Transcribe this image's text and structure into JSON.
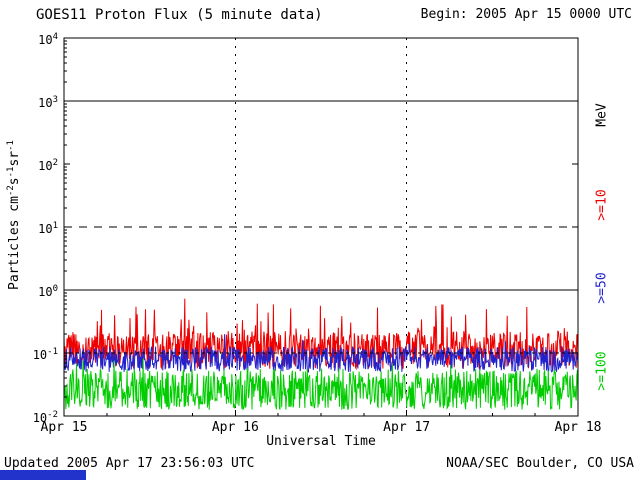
{
  "header": {
    "title": "GOES11 Proton Flux (5 minute data)",
    "begin_label": "Begin: 2005 Apr 15 0000 UTC"
  },
  "footer": {
    "updated": "Updated 2005 Apr 17 23:56:03 UTC",
    "credit": "NOAA/SEC Boulder, CO USA",
    "bar_color": "#2233cc"
  },
  "chart_data": {
    "type": "line",
    "title": "GOES11 Proton Flux (5 minute data)",
    "xlabel": "Universal Time",
    "ylabel": "Particles cm-2 s-1 sr-1",
    "ylabel_parts": {
      "t1": "Particles  cm",
      "s1": "-2",
      "t2": "s",
      "s2": "-1",
      "t3": "sr",
      "s3": "-1"
    },
    "x_ticks": [
      "Apr 15",
      "Apr 16",
      "Apr 17",
      "Apr 18"
    ],
    "x_days": 3,
    "points_per_day": 288,
    "y_tick_exps": [
      4,
      3,
      2,
      1,
      0,
      -1,
      -2
    ],
    "ylim_exp": [
      -2,
      4
    ],
    "y_axis_scale": "log10",
    "right_labels": [
      {
        "text": "MeV",
        "color": "#000000"
      },
      {
        "text": ">=10",
        "color": "#ee0000"
      },
      {
        "text": ">=50",
        "color": "#2222cc"
      },
      {
        "text": ">=100",
        "color": "#00cc00"
      }
    ],
    "series": [
      {
        "name": ">=10 MeV",
        "color": "#ee0000",
        "base_log": -1.25,
        "spread": 0.6,
        "spike_prob": 0.09,
        "spike_amp": 0.6,
        "seed": 20050415,
        "approx_flux_range": [
          0.05,
          0.8
        ]
      },
      {
        "name": ">=50 MeV",
        "color": "#2222cc",
        "base_log": -1.3,
        "spread": 0.4,
        "spike_prob": 0.04,
        "spike_amp": 0.25,
        "seed": 50,
        "approx_flux_range": [
          0.05,
          0.15
        ]
      },
      {
        "name": ">=100 MeV",
        "color": "#00cc00",
        "base_log": -1.9,
        "spread": 0.65,
        "spike_prob": 0.05,
        "spike_amp": 0.3,
        "seed": 100,
        "approx_flux_range": [
          0.012,
          0.08
        ]
      }
    ],
    "grid": {
      "h_solid_exp": [
        3,
        0
      ],
      "h_dashed_exp": [
        1
      ],
      "h_fine_exp": [
        -1
      ],
      "v_dashed_days": [
        1,
        2
      ]
    }
  }
}
